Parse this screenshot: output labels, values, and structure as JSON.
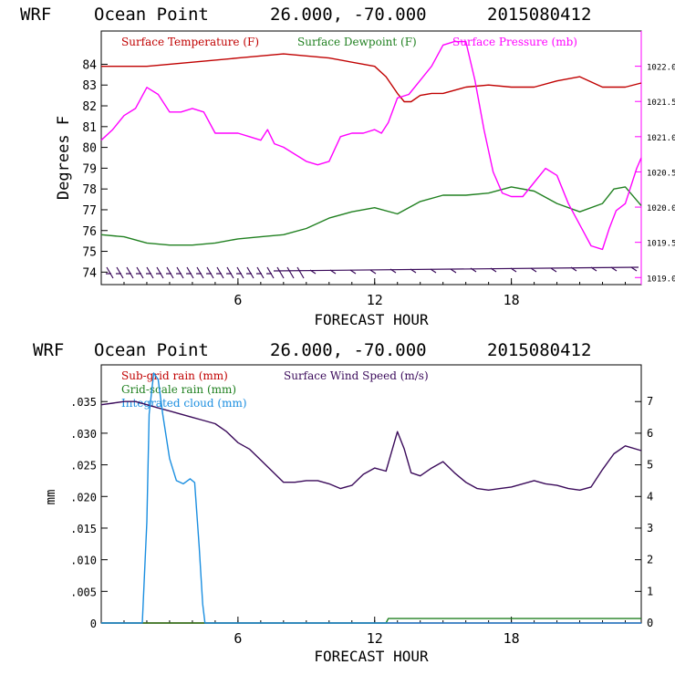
{
  "charts": {
    "top": {
      "header": {
        "model": "WRF",
        "location": "Ocean Point",
        "coords": "26.000, -70.000",
        "run": "2015080412"
      },
      "xlabel": "FORECAST HOUR",
      "ylabel": "Degrees F",
      "legend": [
        {
          "label": "Surface Temperature (F)",
          "color": "#c00000"
        },
        {
          "label": "Surface Dewpoint (F)",
          "color": "#208020"
        },
        {
          "label": "Surface Pressure (mb)",
          "color": "#ff00ff"
        }
      ],
      "y_ticks": [
        "74",
        "75",
        "76",
        "77",
        "78",
        "79",
        "80",
        "81",
        "82",
        "83",
        "84"
      ],
      "y2_ticks": [
        "1019.0",
        "1019.5",
        "1020.0",
        "1020.5",
        "1021.0",
        "1021.5",
        "1022.0"
      ],
      "x_ticks": [
        "6",
        "12",
        "18"
      ]
    },
    "bottom": {
      "header": {
        "model": "WRF",
        "location": "Ocean Point",
        "coords": "26.000, -70.000",
        "run": "2015080412"
      },
      "xlabel": "FORECAST HOUR",
      "ylabel": "mm",
      "legend": [
        {
          "label": "Sub-grid rain (mm)",
          "color": "#c00000"
        },
        {
          "label": "Surface Wind Speed (m/s)",
          "color": "#3a0a5a"
        },
        {
          "label": "Grid-scale rain (mm)",
          "color": "#208020"
        },
        {
          "label": "Integrated cloud (mm)",
          "color": "#1a8ee0"
        }
      ],
      "y_ticks": [
        "0",
        ".005",
        ".010",
        ".015",
        ".020",
        ".025",
        ".030",
        ".035"
      ],
      "y2_ticks": [
        "0",
        "1",
        "2",
        "3",
        "4",
        "5",
        "6",
        "7"
      ],
      "x_ticks": [
        "6",
        "12",
        "18"
      ]
    }
  },
  "chart_data": [
    {
      "type": "line",
      "title": "WRF Ocean Point 26.000, -70.000 2015080412",
      "xlabel": "FORECAST HOUR",
      "ylabel": "Degrees F",
      "xlim": [
        0,
        23.7
      ],
      "ylim": [
        73.4,
        85.6
      ],
      "y2lim": [
        1018.9,
        1022.5
      ],
      "series": [
        {
          "name": "Surface Temperature (F)",
          "axis": "left",
          "color": "#c00000",
          "x": [
            0,
            2,
            4,
            6,
            8,
            10,
            12,
            12.5,
            13,
            13.3,
            13.6,
            14,
            14.5,
            15,
            16,
            17,
            18,
            19,
            20,
            21,
            22,
            23,
            23.7
          ],
          "y": [
            83.9,
            83.9,
            84.1,
            84.3,
            84.5,
            84.3,
            83.9,
            83.4,
            82.6,
            82.2,
            82.2,
            82.5,
            82.6,
            82.6,
            82.9,
            83.0,
            82.9,
            82.9,
            83.2,
            83.4,
            82.9,
            82.9,
            83.1
          ]
        },
        {
          "name": "Surface Dewpoint (F)",
          "axis": "left",
          "color": "#208020",
          "x": [
            0,
            1,
            2,
            3,
            4,
            5,
            6,
            7,
            8,
            9,
            10,
            11,
            12,
            13,
            14,
            15,
            16,
            17,
            18,
            19,
            20,
            21,
            22,
            22.5,
            23,
            23.7
          ],
          "y": [
            75.8,
            75.7,
            75.4,
            75.3,
            75.3,
            75.4,
            75.6,
            75.7,
            75.8,
            76.1,
            76.6,
            76.9,
            77.1,
            76.8,
            77.4,
            77.7,
            77.7,
            77.8,
            78.1,
            77.9,
            77.3,
            76.9,
            77.3,
            78.0,
            78.1,
            77.2
          ]
        },
        {
          "name": "Surface Pressure (mb)",
          "axis": "right",
          "color": "#ff00ff",
          "x": [
            0,
            0.5,
            1,
            1.5,
            2,
            2.5,
            3,
            3.5,
            4,
            4.5,
            5,
            5.5,
            6,
            6.5,
            7,
            7.3,
            7.6,
            8,
            8.5,
            9,
            9.5,
            10,
            10.5,
            11,
            11.5,
            12,
            12.3,
            12.6,
            13,
            13.5,
            14,
            14.5,
            15,
            15.5,
            16,
            16.4,
            16.8,
            17.2,
            17.6,
            18,
            18.5,
            19,
            19.5,
            20,
            20.5,
            21,
            21.5,
            22,
            22.3,
            22.6,
            23,
            23.5,
            23.7
          ],
          "y": [
            1020.95,
            1021.1,
            1021.3,
            1021.4,
            1021.7,
            1021.6,
            1021.35,
            1021.35,
            1021.4,
            1021.35,
            1021.05,
            1021.05,
            1021.05,
            1021.0,
            1020.95,
            1021.1,
            1020.9,
            1020.85,
            1020.75,
            1020.65,
            1020.6,
            1020.65,
            1021.0,
            1021.05,
            1021.05,
            1021.1,
            1021.05,
            1021.2,
            1021.55,
            1021.6,
            1021.8,
            1022.0,
            1022.3,
            1022.35,
            1022.35,
            1021.8,
            1021.1,
            1020.5,
            1020.2,
            1020.15,
            1020.15,
            1020.35,
            1020.55,
            1020.45,
            1020.05,
            1019.75,
            1019.45,
            1019.4,
            1019.7,
            1019.95,
            1020.05,
            1020.55,
            1020.7
          ]
        }
      ]
    },
    {
      "type": "line",
      "title": "WRF Ocean Point 26.000, -70.000 2015080412",
      "xlabel": "FORECAST HOUR",
      "ylabel": "mm",
      "xlim": [
        0,
        23.7
      ],
      "ylim": [
        0,
        0.0408
      ],
      "y2lim": [
        0,
        8.16
      ],
      "series": [
        {
          "name": "Surface Wind Speed (m/s)",
          "axis": "right",
          "color": "#3a0a5a",
          "x": [
            0,
            0.5,
            1,
            1.5,
            2,
            2.5,
            3,
            3.5,
            4,
            4.5,
            5,
            5.5,
            6,
            6.5,
            7,
            7.5,
            8,
            8.5,
            9,
            9.5,
            10,
            10.5,
            11,
            11.5,
            12,
            12.5,
            13,
            13.3,
            13.6,
            14,
            14.5,
            15,
            15.5,
            16,
            16.5,
            17,
            17.5,
            18,
            18.5,
            19,
            19.5,
            20,
            20.5,
            21,
            21.5,
            22,
            22.5,
            23,
            23.7
          ],
          "y": [
            6.9,
            6.95,
            7.0,
            7.0,
            6.9,
            6.8,
            6.7,
            6.6,
            6.5,
            6.4,
            6.3,
            6.05,
            5.7,
            5.5,
            5.15,
            4.8,
            4.45,
            4.45,
            4.5,
            4.5,
            4.4,
            4.25,
            4.35,
            4.7,
            4.9,
            4.8,
            6.05,
            5.5,
            4.75,
            4.65,
            4.9,
            5.1,
            4.75,
            4.45,
            4.25,
            4.2,
            4.25,
            4.3,
            4.4,
            4.5,
            4.4,
            4.35,
            4.25,
            4.2,
            4.3,
            4.85,
            5.35,
            5.6,
            5.45
          ]
        },
        {
          "name": "Sub-grid rain (mm)",
          "axis": "left",
          "color": "#c00000",
          "x": [
            0,
            23.7
          ],
          "y": [
            0,
            0
          ]
        },
        {
          "name": "Grid-scale rain (mm)",
          "axis": "left",
          "color": "#208020",
          "x": [
            0,
            12.5,
            12.6,
            23.7
          ],
          "y": [
            0,
            0,
            0.0007,
            0.0007
          ]
        },
        {
          "name": "Integrated cloud (mm)",
          "axis": "left",
          "color": "#1a8ee0",
          "x": [
            0,
            1.8,
            2.0,
            2.1,
            2.3,
            2.5,
            2.7,
            3.0,
            3.3,
            3.6,
            3.9,
            4.1,
            4.3,
            4.45,
            4.55,
            23.7
          ],
          "y": [
            0,
            0,
            0.016,
            0.033,
            0.0395,
            0.0385,
            0.033,
            0.026,
            0.0225,
            0.022,
            0.0228,
            0.0222,
            0.012,
            0.003,
            0,
            0
          ]
        }
      ]
    }
  ]
}
